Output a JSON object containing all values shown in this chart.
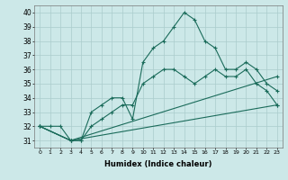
{
  "bg_color": "#cce8e8",
  "grid_color": "#aacccc",
  "line_color": "#1a6b5a",
  "xlabel": "Humidex (Indice chaleur)",
  "xlim": [
    -0.5,
    23.5
  ],
  "ylim": [
    30.5,
    40.5
  ],
  "yticks": [
    31,
    32,
    33,
    34,
    35,
    36,
    37,
    38,
    39,
    40
  ],
  "xticks": [
    0,
    1,
    2,
    3,
    4,
    5,
    6,
    7,
    8,
    9,
    10,
    11,
    12,
    13,
    14,
    15,
    16,
    17,
    18,
    19,
    20,
    21,
    22,
    23
  ],
  "line1_x": [
    0,
    1,
    2,
    3,
    4,
    5,
    6,
    7,
    8,
    9,
    10,
    11,
    12,
    13,
    14,
    15,
    16,
    17,
    18,
    19,
    20,
    21,
    22,
    23
  ],
  "line1_y": [
    32,
    32,
    32,
    31,
    31,
    33,
    33.5,
    34,
    34,
    32.5,
    36.5,
    37.5,
    38,
    39,
    40,
    39.5,
    38,
    37.5,
    36,
    36,
    36.5,
    36,
    35,
    34.5
  ],
  "line2_x": [
    0,
    3,
    23
  ],
  "line2_y": [
    32,
    31,
    35.5
  ],
  "line3_x": [
    0,
    3,
    23
  ],
  "line3_y": [
    32,
    31,
    33.5
  ],
  "line4_x": [
    0,
    3,
    4,
    5,
    6,
    7,
    8,
    9,
    10,
    11,
    12,
    13,
    14,
    15,
    16,
    17,
    18,
    19,
    20,
    21,
    22,
    23
  ],
  "line4_y": [
    32,
    31,
    31,
    32,
    32.5,
    33,
    33.5,
    33.5,
    35,
    35.5,
    36,
    36,
    35.5,
    35,
    35.5,
    36,
    35.5,
    35.5,
    36,
    35,
    34.5,
    33.5
  ]
}
